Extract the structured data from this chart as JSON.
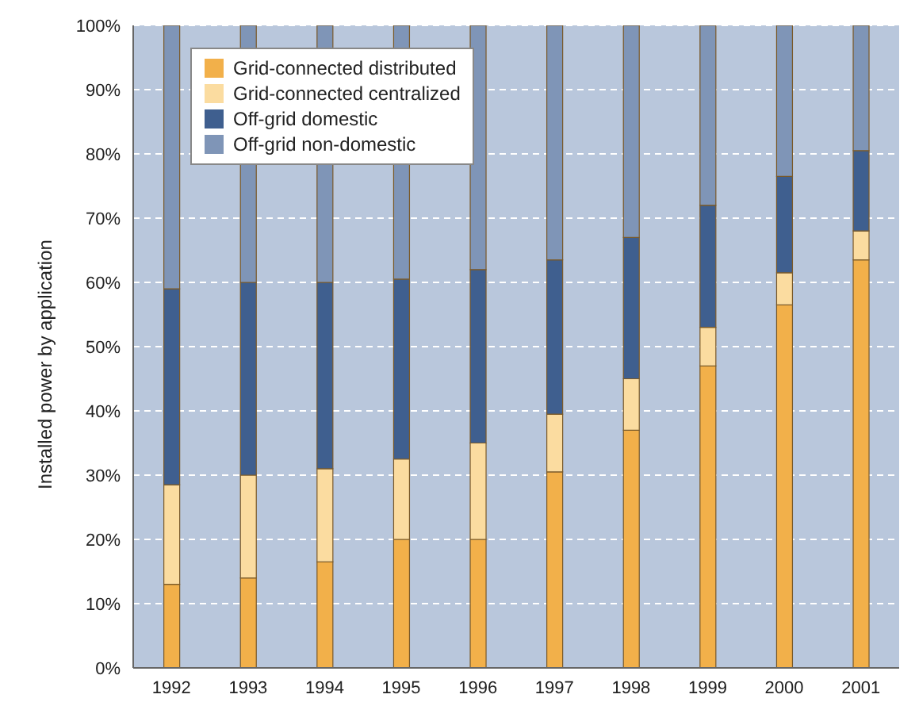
{
  "chart_data": {
    "type": "bar",
    "stacked": true,
    "ylabel": "Installed power by application",
    "categories": [
      "1992",
      "1993",
      "1994",
      "1995",
      "1996",
      "1997",
      "1998",
      "1999",
      "2000",
      "2001"
    ],
    "series": [
      {
        "name": "Grid-connected distributed",
        "color": "#f2b04a",
        "values": [
          13,
          14,
          16.5,
          20,
          20,
          30.5,
          37,
          47,
          56.5,
          63.5
        ]
      },
      {
        "name": "Grid-connected centralized",
        "color": "#fbdca0",
        "values": [
          15.5,
          16,
          14.5,
          12.5,
          15,
          9,
          8,
          6,
          5,
          4.5
        ]
      },
      {
        "name": "Off-grid domestic",
        "color": "#3f5f8f",
        "values": [
          30.5,
          30,
          29,
          28,
          27,
          24,
          22,
          19,
          15,
          12.5
        ]
      },
      {
        "name": "Off-grid non-domestic",
        "color": "#7f95b7",
        "values": [
          41,
          40,
          40,
          39.5,
          38,
          36.5,
          33,
          28,
          23.5,
          19.5
        ]
      }
    ],
    "ylim": [
      0,
      100
    ],
    "yticks": [
      {
        "value": 0,
        "label": "0%"
      },
      {
        "value": 10,
        "label": "10%"
      },
      {
        "value": 20,
        "label": "20%"
      },
      {
        "value": 30,
        "label": "30%"
      },
      {
        "value": 40,
        "label": "40%"
      },
      {
        "value": 50,
        "label": "50%"
      },
      {
        "value": 60,
        "label": "60%"
      },
      {
        "value": 70,
        "label": "70%"
      },
      {
        "value": 80,
        "label": "80%"
      },
      {
        "value": 90,
        "label": "90%"
      },
      {
        "value": 100,
        "label": "100%"
      }
    ],
    "grid": "y",
    "legend": "top left"
  }
}
